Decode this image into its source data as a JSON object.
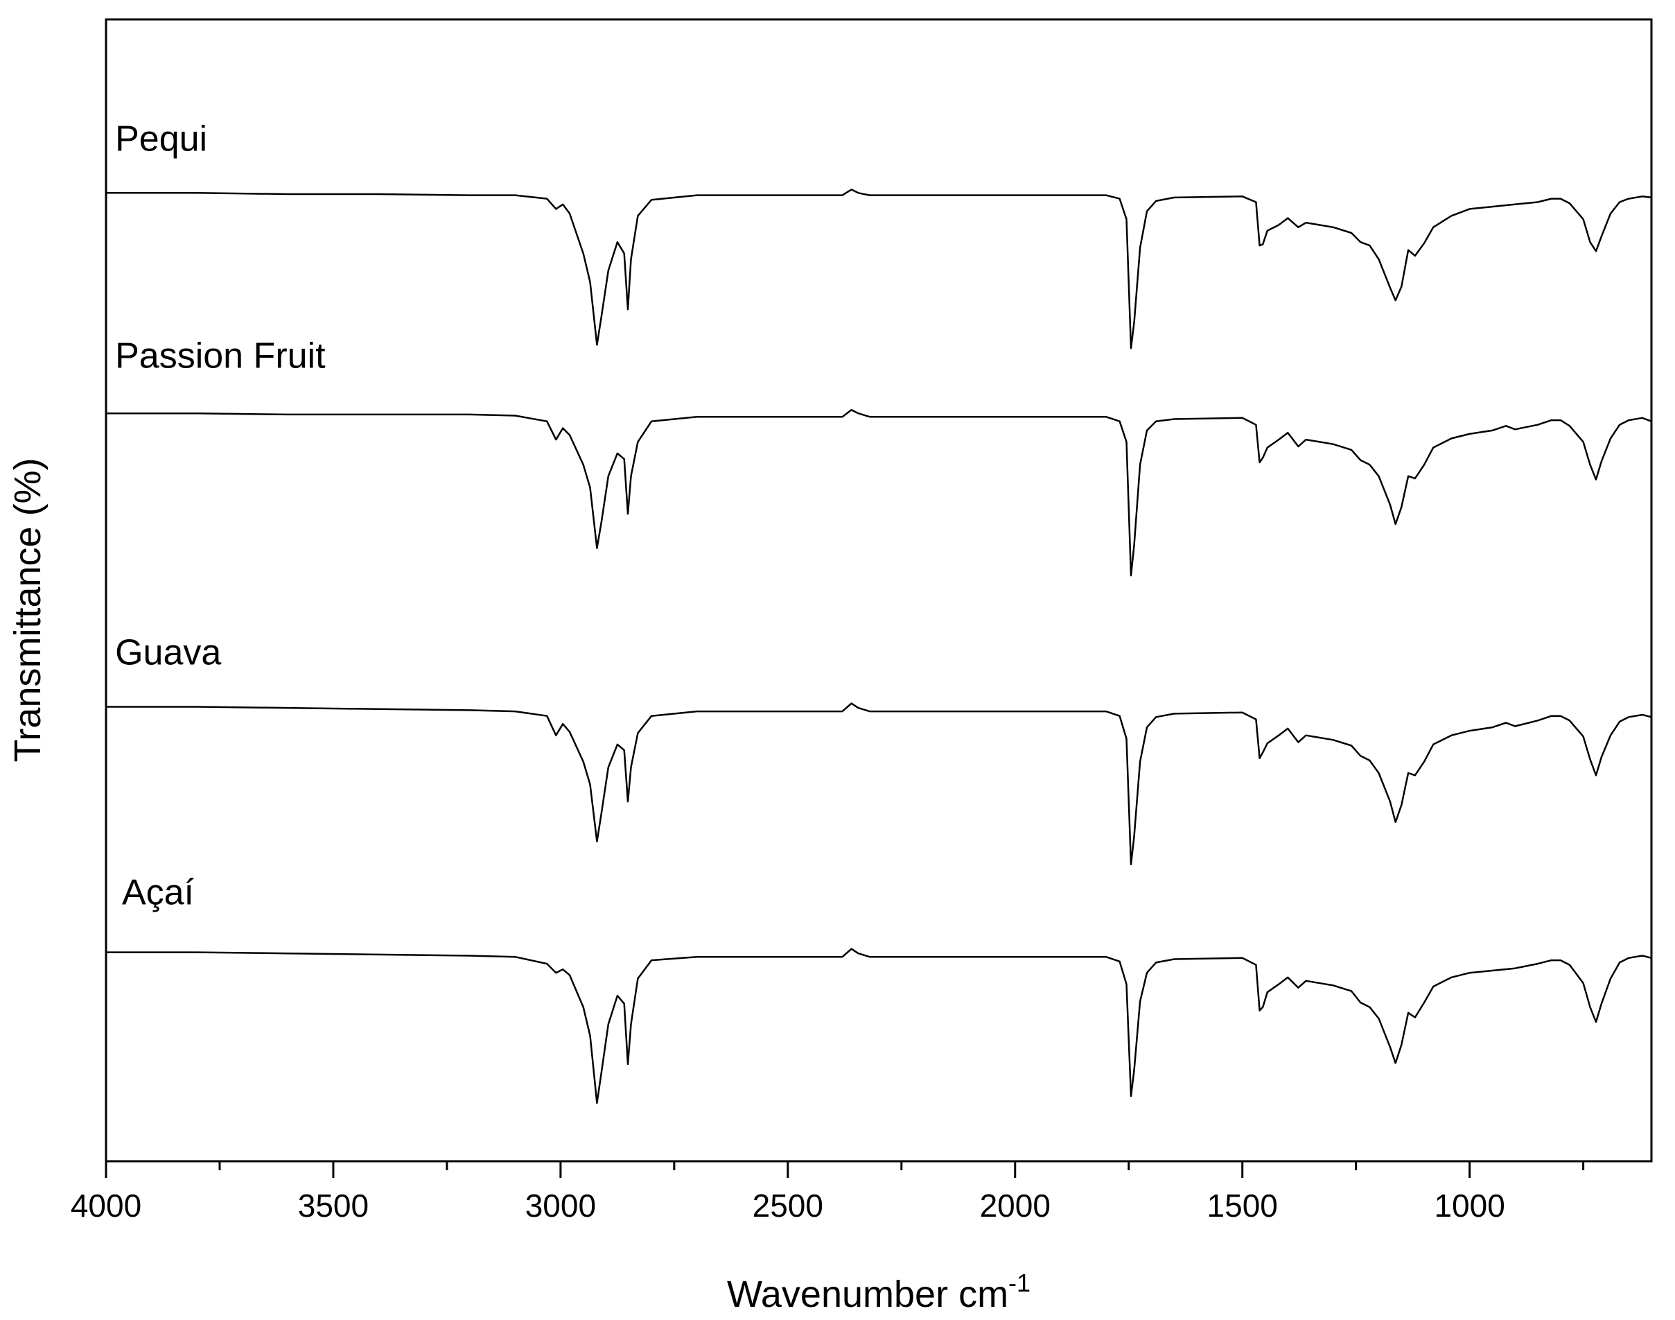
{
  "chart_data": {
    "type": "line",
    "xlabel": "Wavenumber cm",
    "xlabel_superscript": "-1",
    "ylabel": "Transmittance (%)",
    "xlim": [
      4000,
      600
    ],
    "x_reversed": true,
    "ylim": [
      0,
      100
    ],
    "x_ticks": [
      {
        "value": 4000,
        "label": "4000"
      },
      {
        "value": 3500,
        "label": "3500"
      },
      {
        "value": 3000,
        "label": "3000"
      },
      {
        "value": 2500,
        "label": "2500"
      },
      {
        "value": 2000,
        "label": "2000"
      },
      {
        "value": 1500,
        "label": "1500"
      },
      {
        "value": 1000,
        "label": "1000"
      }
    ],
    "x_minor_ticks": [
      3750,
      3250,
      2750,
      2250,
      1750,
      1250,
      750
    ],
    "grid": false,
    "legend": "none",
    "line_color": "#000000",
    "series": [
      {
        "name": "Pequi",
        "label_x": 3980,
        "label_y": 88.5,
        "points": [
          [
            4000,
            84.8
          ],
          [
            3800,
            84.8
          ],
          [
            3600,
            84.7
          ],
          [
            3400,
            84.7
          ],
          [
            3200,
            84.6
          ],
          [
            3100,
            84.6
          ],
          [
            3030,
            84.3
          ],
          [
            3010,
            83.4
          ],
          [
            2995,
            83.8
          ],
          [
            2980,
            83.0
          ],
          [
            2950,
            79.5
          ],
          [
            2935,
            77.0
          ],
          [
            2920,
            71.5
          ],
          [
            2910,
            74.0
          ],
          [
            2895,
            78.0
          ],
          [
            2875,
            80.5
          ],
          [
            2860,
            79.5
          ],
          [
            2852,
            74.6
          ],
          [
            2845,
            79.0
          ],
          [
            2830,
            82.8
          ],
          [
            2800,
            84.2
          ],
          [
            2700,
            84.6
          ],
          [
            2500,
            84.6
          ],
          [
            2380,
            84.6
          ],
          [
            2360,
            85.1
          ],
          [
            2345,
            84.8
          ],
          [
            2320,
            84.6
          ],
          [
            2200,
            84.6
          ],
          [
            2000,
            84.6
          ],
          [
            1800,
            84.6
          ],
          [
            1770,
            84.3
          ],
          [
            1755,
            82.5
          ],
          [
            1745,
            71.2
          ],
          [
            1738,
            73.5
          ],
          [
            1725,
            80.0
          ],
          [
            1710,
            83.2
          ],
          [
            1690,
            84.1
          ],
          [
            1650,
            84.4
          ],
          [
            1500,
            84.5
          ],
          [
            1470,
            84.0
          ],
          [
            1462,
            80.2
          ],
          [
            1455,
            80.3
          ],
          [
            1445,
            81.5
          ],
          [
            1420,
            82.0
          ],
          [
            1400,
            82.6
          ],
          [
            1377,
            81.8
          ],
          [
            1360,
            82.2
          ],
          [
            1300,
            81.8
          ],
          [
            1260,
            81.3
          ],
          [
            1240,
            80.5
          ],
          [
            1220,
            80.2
          ],
          [
            1200,
            79.0
          ],
          [
            1175,
            76.5
          ],
          [
            1163,
            75.4
          ],
          [
            1150,
            76.6
          ],
          [
            1135,
            79.8
          ],
          [
            1120,
            79.3
          ],
          [
            1100,
            80.4
          ],
          [
            1080,
            81.8
          ],
          [
            1040,
            82.8
          ],
          [
            1000,
            83.4
          ],
          [
            950,
            83.6
          ],
          [
            900,
            83.8
          ],
          [
            850,
            84.0
          ],
          [
            820,
            84.3
          ],
          [
            800,
            84.3
          ],
          [
            780,
            83.9
          ],
          [
            750,
            82.5
          ],
          [
            735,
            80.5
          ],
          [
            722,
            79.7
          ],
          [
            710,
            81.0
          ],
          [
            690,
            83.0
          ],
          [
            670,
            84.0
          ],
          [
            650,
            84.3
          ],
          [
            620,
            84.5
          ],
          [
            600,
            84.4
          ]
        ]
      },
      {
        "name": "Passion Fruit",
        "label_x": 3980,
        "label_y": 69.5,
        "points": [
          [
            4000,
            65.5
          ],
          [
            3800,
            65.5
          ],
          [
            3600,
            65.4
          ],
          [
            3400,
            65.4
          ],
          [
            3200,
            65.4
          ],
          [
            3100,
            65.3
          ],
          [
            3030,
            64.8
          ],
          [
            3010,
            63.2
          ],
          [
            2995,
            64.2
          ],
          [
            2980,
            63.6
          ],
          [
            2950,
            61.0
          ],
          [
            2935,
            59.0
          ],
          [
            2920,
            53.7
          ],
          [
            2910,
            56.0
          ],
          [
            2895,
            60.0
          ],
          [
            2875,
            62.0
          ],
          [
            2860,
            61.5
          ],
          [
            2852,
            56.7
          ],
          [
            2845,
            60.0
          ],
          [
            2830,
            63.0
          ],
          [
            2800,
            64.8
          ],
          [
            2700,
            65.2
          ],
          [
            2500,
            65.2
          ],
          [
            2380,
            65.2
          ],
          [
            2360,
            65.8
          ],
          [
            2345,
            65.5
          ],
          [
            2320,
            65.2
          ],
          [
            2200,
            65.2
          ],
          [
            2000,
            65.2
          ],
          [
            1800,
            65.2
          ],
          [
            1770,
            64.8
          ],
          [
            1755,
            63.0
          ],
          [
            1745,
            51.3
          ],
          [
            1738,
            54.0
          ],
          [
            1725,
            61.0
          ],
          [
            1710,
            64.0
          ],
          [
            1690,
            64.8
          ],
          [
            1650,
            65.0
          ],
          [
            1500,
            65.1
          ],
          [
            1470,
            64.5
          ],
          [
            1462,
            61.2
          ],
          [
            1455,
            61.6
          ],
          [
            1445,
            62.5
          ],
          [
            1420,
            63.2
          ],
          [
            1400,
            63.8
          ],
          [
            1377,
            62.6
          ],
          [
            1360,
            63.2
          ],
          [
            1300,
            62.8
          ],
          [
            1260,
            62.3
          ],
          [
            1240,
            61.4
          ],
          [
            1220,
            61.0
          ],
          [
            1200,
            60.0
          ],
          [
            1175,
            57.5
          ],
          [
            1163,
            55.8
          ],
          [
            1150,
            57.3
          ],
          [
            1135,
            60.0
          ],
          [
            1120,
            59.8
          ],
          [
            1100,
            61.0
          ],
          [
            1080,
            62.5
          ],
          [
            1040,
            63.3
          ],
          [
            1000,
            63.7
          ],
          [
            950,
            64.0
          ],
          [
            920,
            64.4
          ],
          [
            900,
            64.1
          ],
          [
            850,
            64.5
          ],
          [
            820,
            64.9
          ],
          [
            800,
            64.9
          ],
          [
            780,
            64.4
          ],
          [
            750,
            63.0
          ],
          [
            735,
            61.0
          ],
          [
            722,
            59.7
          ],
          [
            710,
            61.3
          ],
          [
            690,
            63.3
          ],
          [
            670,
            64.5
          ],
          [
            650,
            64.9
          ],
          [
            620,
            65.1
          ],
          [
            600,
            64.8
          ]
        ]
      },
      {
        "name": "Guava",
        "label_x": 3980,
        "label_y": 43.5,
        "points": [
          [
            4000,
            39.8
          ],
          [
            3800,
            39.8
          ],
          [
            3600,
            39.7
          ],
          [
            3400,
            39.6
          ],
          [
            3200,
            39.5
          ],
          [
            3100,
            39.4
          ],
          [
            3030,
            39.0
          ],
          [
            3010,
            37.3
          ],
          [
            2995,
            38.3
          ],
          [
            2980,
            37.6
          ],
          [
            2950,
            35.0
          ],
          [
            2935,
            33.0
          ],
          [
            2920,
            28.0
          ],
          [
            2910,
            30.5
          ],
          [
            2895,
            34.5
          ],
          [
            2875,
            36.5
          ],
          [
            2860,
            36.0
          ],
          [
            2852,
            31.5
          ],
          [
            2845,
            34.5
          ],
          [
            2830,
            37.5
          ],
          [
            2800,
            39.0
          ],
          [
            2700,
            39.4
          ],
          [
            2500,
            39.4
          ],
          [
            2380,
            39.4
          ],
          [
            2360,
            40.1
          ],
          [
            2345,
            39.7
          ],
          [
            2320,
            39.4
          ],
          [
            2200,
            39.4
          ],
          [
            2000,
            39.4
          ],
          [
            1800,
            39.4
          ],
          [
            1770,
            39.0
          ],
          [
            1755,
            37.0
          ],
          [
            1745,
            26.0
          ],
          [
            1738,
            28.5
          ],
          [
            1725,
            35.0
          ],
          [
            1710,
            38.0
          ],
          [
            1690,
            38.9
          ],
          [
            1650,
            39.2
          ],
          [
            1500,
            39.3
          ],
          [
            1470,
            38.7
          ],
          [
            1462,
            35.3
          ],
          [
            1455,
            35.8
          ],
          [
            1445,
            36.6
          ],
          [
            1420,
            37.3
          ],
          [
            1400,
            37.9
          ],
          [
            1377,
            36.7
          ],
          [
            1360,
            37.3
          ],
          [
            1300,
            36.9
          ],
          [
            1260,
            36.4
          ],
          [
            1240,
            35.5
          ],
          [
            1220,
            35.1
          ],
          [
            1200,
            34.0
          ],
          [
            1175,
            31.5
          ],
          [
            1163,
            29.7
          ],
          [
            1150,
            31.2
          ],
          [
            1135,
            34.0
          ],
          [
            1120,
            33.8
          ],
          [
            1100,
            35.0
          ],
          [
            1080,
            36.5
          ],
          [
            1040,
            37.3
          ],
          [
            1000,
            37.7
          ],
          [
            950,
            38.0
          ],
          [
            920,
            38.4
          ],
          [
            900,
            38.1
          ],
          [
            850,
            38.6
          ],
          [
            820,
            39.0
          ],
          [
            800,
            39.0
          ],
          [
            780,
            38.6
          ],
          [
            750,
            37.2
          ],
          [
            735,
            35.2
          ],
          [
            722,
            33.8
          ],
          [
            710,
            35.4
          ],
          [
            690,
            37.3
          ],
          [
            670,
            38.5
          ],
          [
            650,
            38.9
          ],
          [
            620,
            39.1
          ],
          [
            600,
            38.9
          ]
        ]
      },
      {
        "name": "Açaí",
        "label_x": 3965,
        "label_y": 22.5,
        "points": [
          [
            4000,
            18.3
          ],
          [
            3800,
            18.3
          ],
          [
            3600,
            18.2
          ],
          [
            3400,
            18.1
          ],
          [
            3200,
            18.0
          ],
          [
            3100,
            17.9
          ],
          [
            3030,
            17.3
          ],
          [
            3010,
            16.5
          ],
          [
            2995,
            16.8
          ],
          [
            2980,
            16.3
          ],
          [
            2950,
            13.5
          ],
          [
            2935,
            11.0
          ],
          [
            2920,
            5.1
          ],
          [
            2910,
            7.8
          ],
          [
            2895,
            12.0
          ],
          [
            2875,
            14.5
          ],
          [
            2860,
            13.8
          ],
          [
            2852,
            8.5
          ],
          [
            2845,
            12.0
          ],
          [
            2830,
            16.0
          ],
          [
            2800,
            17.6
          ],
          [
            2700,
            17.9
          ],
          [
            2500,
            17.9
          ],
          [
            2380,
            17.9
          ],
          [
            2360,
            18.6
          ],
          [
            2345,
            18.2
          ],
          [
            2320,
            17.9
          ],
          [
            2200,
            17.9
          ],
          [
            2000,
            17.9
          ],
          [
            1800,
            17.9
          ],
          [
            1770,
            17.5
          ],
          [
            1755,
            15.5
          ],
          [
            1745,
            5.7
          ],
          [
            1738,
            8.0
          ],
          [
            1725,
            14.0
          ],
          [
            1710,
            16.5
          ],
          [
            1690,
            17.4
          ],
          [
            1650,
            17.7
          ],
          [
            1500,
            17.8
          ],
          [
            1470,
            17.2
          ],
          [
            1462,
            13.2
          ],
          [
            1455,
            13.5
          ],
          [
            1445,
            14.8
          ],
          [
            1420,
            15.5
          ],
          [
            1400,
            16.1
          ],
          [
            1377,
            15.2
          ],
          [
            1360,
            15.8
          ],
          [
            1300,
            15.4
          ],
          [
            1260,
            14.9
          ],
          [
            1240,
            13.9
          ],
          [
            1220,
            13.5
          ],
          [
            1200,
            12.5
          ],
          [
            1175,
            10.0
          ],
          [
            1163,
            8.6
          ],
          [
            1150,
            10.2
          ],
          [
            1135,
            13.0
          ],
          [
            1120,
            12.6
          ],
          [
            1100,
            13.9
          ],
          [
            1080,
            15.3
          ],
          [
            1040,
            16.1
          ],
          [
            1000,
            16.5
          ],
          [
            950,
            16.7
          ],
          [
            900,
            16.9
          ],
          [
            850,
            17.3
          ],
          [
            820,
            17.6
          ],
          [
            800,
            17.6
          ],
          [
            780,
            17.2
          ],
          [
            750,
            15.6
          ],
          [
            735,
            13.5
          ],
          [
            722,
            12.2
          ],
          [
            710,
            13.8
          ],
          [
            690,
            16.0
          ],
          [
            670,
            17.4
          ],
          [
            650,
            17.8
          ],
          [
            620,
            18.0
          ],
          [
            600,
            17.8
          ]
        ]
      }
    ]
  }
}
